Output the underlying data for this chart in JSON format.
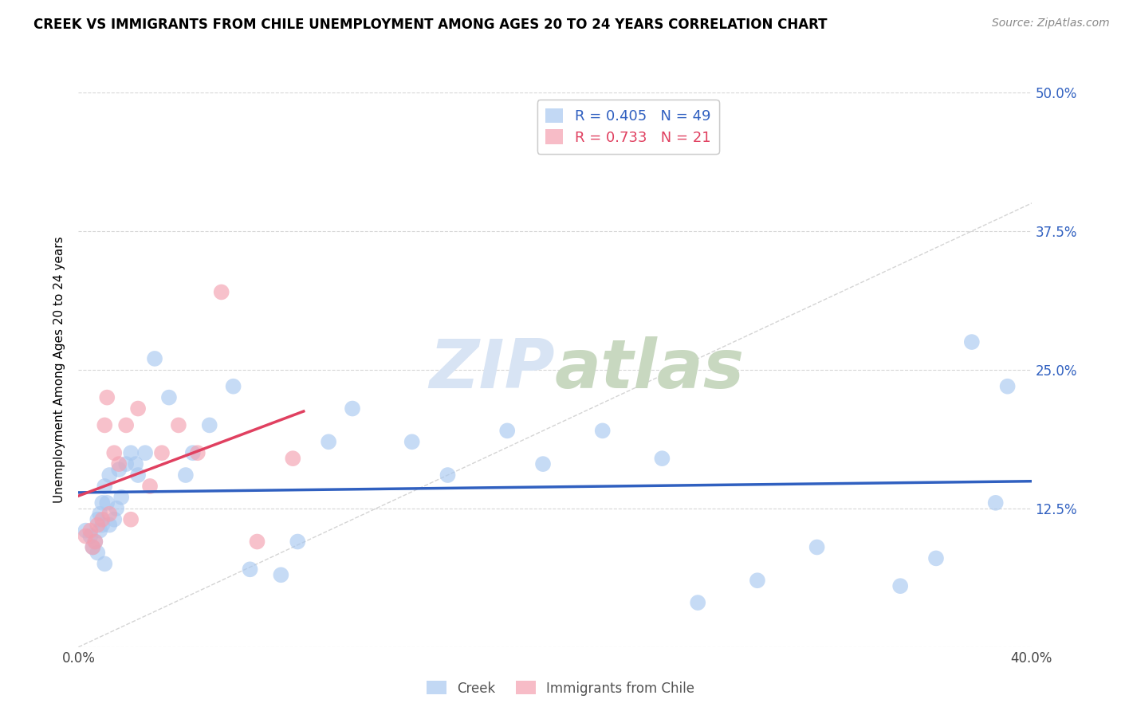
{
  "title": "CREEK VS IMMIGRANTS FROM CHILE UNEMPLOYMENT AMONG AGES 20 TO 24 YEARS CORRELATION CHART",
  "source": "Source: ZipAtlas.com",
  "ylabel": "Unemployment Among Ages 20 to 24 years",
  "xlim": [
    0.0,
    0.4
  ],
  "ylim": [
    0.0,
    0.5
  ],
  "xticks": [
    0.0,
    0.05,
    0.1,
    0.15,
    0.2,
    0.25,
    0.3,
    0.35,
    0.4
  ],
  "yticks": [
    0.0,
    0.125,
    0.25,
    0.375,
    0.5
  ],
  "xticklabels": [
    "0.0%",
    "",
    "",
    "",
    "",
    "",
    "",
    "",
    "40.0%"
  ],
  "yticklabels": [
    "",
    "12.5%",
    "25.0%",
    "37.5%",
    "50.0%"
  ],
  "creek_R": 0.405,
  "creek_N": 49,
  "chile_R": 0.733,
  "chile_N": 21,
  "creek_color": "#A8C8F0",
  "chile_color": "#F4A0B0",
  "creek_line_color": "#3060C0",
  "chile_line_color": "#E04060",
  "diagonal_color": "#D0D0D0",
  "watermark_color": "#D8E4F4",
  "creek_x": [
    0.003,
    0.005,
    0.006,
    0.007,
    0.008,
    0.008,
    0.009,
    0.009,
    0.01,
    0.01,
    0.011,
    0.011,
    0.012,
    0.013,
    0.013,
    0.015,
    0.016,
    0.017,
    0.018,
    0.02,
    0.022,
    0.024,
    0.025,
    0.028,
    0.032,
    0.038,
    0.045,
    0.048,
    0.055,
    0.065,
    0.072,
    0.085,
    0.092,
    0.105,
    0.115,
    0.14,
    0.155,
    0.18,
    0.195,
    0.22,
    0.245,
    0.26,
    0.285,
    0.31,
    0.345,
    0.36,
    0.375,
    0.385,
    0.39
  ],
  "creek_y": [
    0.105,
    0.1,
    0.09,
    0.095,
    0.115,
    0.085,
    0.12,
    0.105,
    0.11,
    0.13,
    0.145,
    0.075,
    0.13,
    0.155,
    0.11,
    0.115,
    0.125,
    0.16,
    0.135,
    0.165,
    0.175,
    0.165,
    0.155,
    0.175,
    0.26,
    0.225,
    0.155,
    0.175,
    0.2,
    0.235,
    0.07,
    0.065,
    0.095,
    0.185,
    0.215,
    0.185,
    0.155,
    0.195,
    0.165,
    0.195,
    0.17,
    0.04,
    0.06,
    0.09,
    0.055,
    0.08,
    0.275,
    0.13,
    0.235
  ],
  "chile_x": [
    0.003,
    0.005,
    0.006,
    0.007,
    0.008,
    0.01,
    0.011,
    0.012,
    0.013,
    0.015,
    0.017,
    0.02,
    0.022,
    0.025,
    0.03,
    0.035,
    0.042,
    0.05,
    0.06,
    0.075,
    0.09
  ],
  "chile_y": [
    0.1,
    0.105,
    0.09,
    0.095,
    0.11,
    0.115,
    0.2,
    0.225,
    0.12,
    0.175,
    0.165,
    0.2,
    0.115,
    0.215,
    0.145,
    0.175,
    0.2,
    0.175,
    0.32,
    0.095,
    0.17
  ]
}
